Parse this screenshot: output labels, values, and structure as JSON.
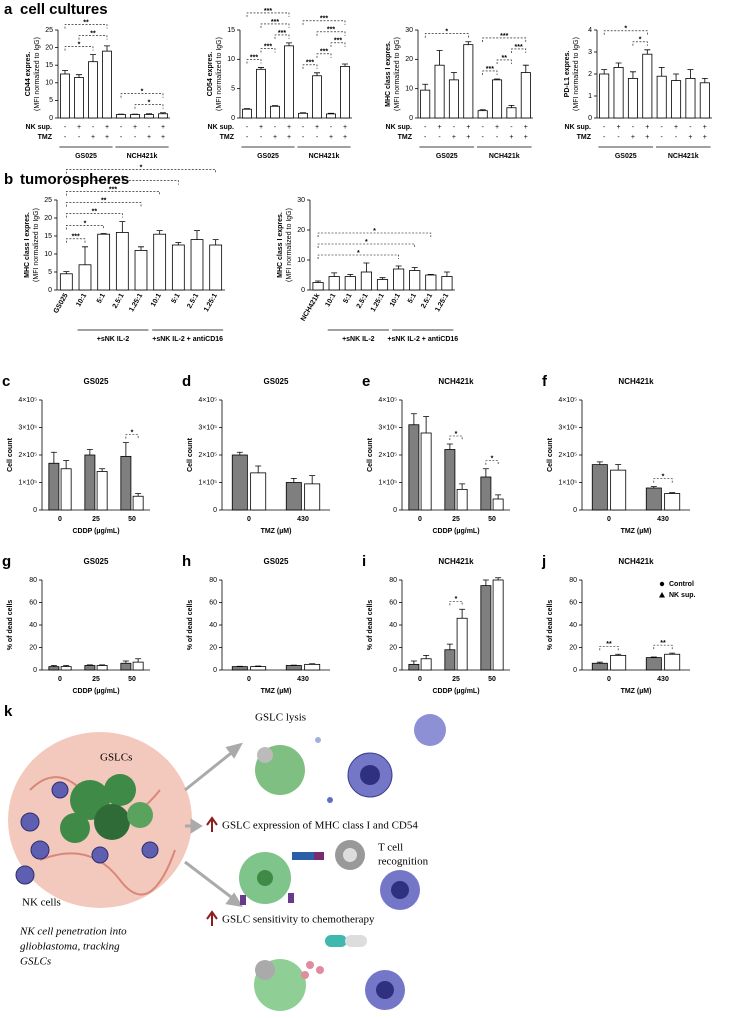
{
  "chart_data": [
    {
      "type": "bar",
      "panel": "a",
      "section": "cell cultures",
      "ylabel": [
        "CD44 expres.",
        "(MFI normalized to IgG)"
      ],
      "color": "#ffffff",
      "values": [
        12.5,
        11.5,
        16,
        19,
        1,
        1,
        1,
        1.2
      ],
      "errors": [
        1,
        0.8,
        2,
        1.5,
        0.1,
        0.1,
        0.2,
        0.3
      ],
      "ylim": [
        0,
        25
      ],
      "yticks": [
        0,
        5,
        10,
        15,
        20,
        25
      ],
      "rows": [
        {
          "name": "NK sup.",
          "values": [
            "-",
            "+",
            "-",
            "+",
            "-",
            "+",
            "-",
            "+"
          ]
        },
        {
          "name": "TMZ",
          "values": [
            "-",
            "-",
            "+",
            "+",
            "-",
            "-",
            "+",
            "+"
          ]
        }
      ],
      "group": [
        "GS025",
        "GS025",
        "GS025",
        "GS025",
        "NCH421k",
        "NCH421k",
        "NCH421k",
        "NCH421k"
      ],
      "significance": [
        {
          "text": "*",
          "pair": [
            0,
            2
          ]
        },
        {
          "text": "**",
          "pair": [
            1,
            3
          ]
        },
        {
          "text": "**",
          "pair": [
            0,
            3
          ]
        },
        {
          "text": "*",
          "pair": [
            5,
            7
          ]
        },
        {
          "text": "*",
          "pair": [
            4,
            7
          ]
        }
      ]
    },
    {
      "type": "bar",
      "ylabel": [
        "CD54 expres.",
        "(MFI normalized to IgG)"
      ],
      "color": "#ffffff",
      "values": [
        1.5,
        8.3,
        2,
        12.3,
        0.8,
        7.2,
        0.7,
        8.8
      ],
      "errors": [
        0.1,
        0.3,
        0.1,
        0.5,
        0.1,
        0.5,
        0.1,
        0.4
      ],
      "ylim": [
        0,
        15
      ],
      "yticks": [
        0,
        5,
        10,
        15
      ],
      "rows": [
        {
          "name": "NK sup.",
          "values": [
            "-",
            "+",
            "-",
            "+",
            "-",
            "+",
            "-",
            "+"
          ]
        },
        {
          "name": "TMZ",
          "values": [
            "-",
            "-",
            "+",
            "+",
            "-",
            "-",
            "+",
            "+"
          ]
        }
      ],
      "group": [
        "GS025",
        "GS025",
        "GS025",
        "GS025",
        "NCH421k",
        "NCH421k",
        "NCH421k",
        "NCH421k"
      ],
      "significance": [
        {
          "text": "***",
          "pair": [
            0,
            1
          ]
        },
        {
          "text": "***",
          "pair": [
            1,
            2
          ]
        },
        {
          "text": "***",
          "pair": [
            2,
            3
          ]
        },
        {
          "text": "***",
          "pair": [
            1,
            3
          ]
        },
        {
          "text": "***",
          "pair": [
            0,
            3
          ]
        },
        {
          "text": "***",
          "pair": [
            4,
            5
          ]
        },
        {
          "text": "***",
          "pair": [
            5,
            6
          ]
        },
        {
          "text": "***",
          "pair": [
            6,
            7
          ]
        },
        {
          "text": "***",
          "pair": [
            5,
            7
          ]
        },
        {
          "text": "***",
          "pair": [
            4,
            7
          ]
        }
      ]
    },
    {
      "type": "bar",
      "ylabel": [
        "MHC class I expres.",
        "(MFI normalized to IgG)"
      ],
      "color": "#ffffff",
      "values": [
        9.5,
        18,
        13,
        25,
        2.5,
        13,
        3.5,
        15.5
      ],
      "errors": [
        2,
        5,
        2.5,
        1,
        0.3,
        0.3,
        0.8,
        2.5
      ],
      "ylim": [
        0,
        30
      ],
      "yticks": [
        0,
        10,
        20,
        30
      ],
      "rows": [
        {
          "name": "NK sup.",
          "values": [
            "-",
            "+",
            "-",
            "+",
            "-",
            "+",
            "-",
            "+"
          ]
        },
        {
          "name": "TMZ",
          "values": [
            "-",
            "-",
            "+",
            "+",
            "-",
            "-",
            "+",
            "+"
          ]
        }
      ],
      "group": [
        "GS025",
        "GS025",
        "GS025",
        "GS025",
        "NCH421k",
        "NCH421k",
        "NCH421k",
        "NCH421k"
      ],
      "significance": [
        {
          "text": "*",
          "pair": [
            0,
            3
          ]
        },
        {
          "text": "***",
          "pair": [
            4,
            5
          ]
        },
        {
          "text": "**",
          "pair": [
            5,
            6
          ]
        },
        {
          "text": "***",
          "pair": [
            6,
            7
          ]
        },
        {
          "text": "***",
          "pair": [
            4,
            7
          ]
        }
      ]
    },
    {
      "type": "bar",
      "ylabel": [
        "PD-L1 expres.",
        "(MFI normalized to IgG)"
      ],
      "color": "#ffffff",
      "values": [
        2.0,
        2.3,
        1.8,
        2.9,
        1.9,
        1.7,
        1.8,
        1.6
      ],
      "errors": [
        0.2,
        0.2,
        0.3,
        0.2,
        0.4,
        0.3,
        0.4,
        0.2
      ],
      "ylim": [
        0,
        4
      ],
      "yticks": [
        0,
        1,
        2,
        3,
        4
      ],
      "rows": [
        {
          "name": "NK sup.",
          "values": [
            "-",
            "+",
            "-",
            "+",
            "-",
            "+",
            "-",
            "+"
          ]
        },
        {
          "name": "TMZ",
          "values": [
            "-",
            "-",
            "+",
            "+",
            "-",
            "-",
            "+",
            "+"
          ]
        }
      ],
      "group": [
        "GS025",
        "GS025",
        "GS025",
        "GS025",
        "NCH421k",
        "NCH421k",
        "NCH421k",
        "NCH421k"
      ],
      "significance": [
        {
          "text": "*",
          "pair": [
            2,
            3
          ]
        },
        {
          "text": "*",
          "pair": [
            0,
            3
          ]
        }
      ]
    },
    {
      "type": "bar",
      "panel": "b",
      "section": "tumorospheres",
      "ylabel": [
        "MHC class I expres.",
        "(MFI normalized to IgG)"
      ],
      "color": "#ffffff",
      "categories": [
        "GS025",
        "10:1",
        "5:1",
        "2.5:1",
        "1.25:1",
        "10:1",
        "5:1",
        "2.5:1",
        "1.25:1"
      ],
      "values": [
        4.5,
        7,
        15.5,
        16,
        11,
        15.5,
        12.5,
        14,
        12.5
      ],
      "errors": [
        0.6,
        5,
        0.2,
        3,
        1,
        1,
        0.7,
        2.5,
        1.5
      ],
      "ylim": [
        0,
        25
      ],
      "yticks": [
        0,
        5,
        10,
        15,
        20,
        25
      ],
      "group": [
        null,
        "+sNK IL-2",
        "+sNK IL-2",
        "+sNK IL-2",
        "+sNK IL-2",
        "+sNK IL-2 + antiCD16",
        "+sNK IL-2 + antiCD16",
        "+sNK IL-2 + antiCD16",
        "+sNK IL-2 + antiCD16"
      ],
      "significance": [
        {
          "text": "***",
          "pair": [
            0,
            1
          ]
        },
        {
          "text": "*",
          "pair": [
            0,
            2
          ]
        },
        {
          "text": "**",
          "pair": [
            0,
            3
          ]
        },
        {
          "text": "**",
          "pair": [
            0,
            4
          ]
        },
        {
          "text": "***",
          "pair": [
            0,
            5
          ]
        },
        {
          "text": "*",
          "pair": [
            0,
            6
          ]
        },
        {
          "text": "*",
          "pair": [
            0,
            8
          ]
        }
      ]
    },
    {
      "type": "bar",
      "ylabel": [
        "MHC class I expres.",
        "(MFI normalized to IgG)"
      ],
      "color": "#ffffff",
      "categories": [
        "NCH421k",
        "10:1",
        "5:1",
        "2.5:1",
        "1.25:1",
        "10:1",
        "5:1",
        "2.5:1",
        "1.25:1"
      ],
      "values": [
        2.5,
        4.5,
        4.5,
        6,
        3.5,
        7,
        6.5,
        5,
        4.5
      ],
      "errors": [
        0.5,
        1.2,
        0.7,
        3,
        0.6,
        1,
        1,
        0.2,
        1.5
      ],
      "ylim": [
        0,
        30
      ],
      "yticks": [
        0,
        10,
        20,
        30
      ],
      "group": [
        null,
        "+sNK IL-2",
        "+sNK IL-2",
        "+sNK IL-2",
        "+sNK IL-2",
        "+sNK IL-2 + antiCD16",
        "+sNK IL-2 + antiCD16",
        "+sNK IL-2 + antiCD16",
        "+sNK IL-2 + antiCD16"
      ],
      "significance": [
        {
          "text": "*",
          "pair": [
            0,
            5
          ]
        },
        {
          "text": "*",
          "pair": [
            0,
            6
          ]
        },
        {
          "text": "*",
          "pair": [
            0,
            7
          ]
        }
      ]
    },
    {
      "type": "grouped_bar",
      "panel": "c",
      "title": "GS025",
      "ylabel": "Cell count",
      "xlabel": "CDDP (µg/mL)",
      "categories": [
        "0",
        "25",
        "50"
      ],
      "series": [
        {
          "name": "Control",
          "color": "#7f7f7f",
          "values": [
            170000,
            200000,
            195000
          ],
          "errors": [
            40000,
            20000,
            50000
          ]
        },
        {
          "name": "NK sup.",
          "color": "#ffffff",
          "values": [
            150000,
            140000,
            50000
          ],
          "errors": [
            30000,
            10000,
            10000
          ]
        }
      ],
      "ylim": [
        0,
        400000
      ],
      "yticks": [
        0,
        {
          "value": 100000,
          "label": "1×10⁵"
        },
        {
          "value": 200000,
          "label": "2×10⁵"
        },
        {
          "value": 300000,
          "label": "3×10⁵"
        },
        {
          "value": 400000,
          "label": "4×10⁵"
        }
      ],
      "significance": [
        {
          "text": "*",
          "category": 2
        }
      ]
    },
    {
      "type": "grouped_bar",
      "panel": "d",
      "title": "GS025",
      "ylabel": "Cell count",
      "xlabel": "TMZ (µM)",
      "categories": [
        "0",
        "430"
      ],
      "series": [
        {
          "name": "Control",
          "color": "#7f7f7f",
          "values": [
            200000,
            100000
          ],
          "errors": [
            10000,
            15000
          ]
        },
        {
          "name": "NK sup.",
          "color": "#ffffff",
          "values": [
            135000,
            95000
          ],
          "errors": [
            25000,
            30000
          ]
        }
      ],
      "ylim": [
        0,
        400000
      ],
      "yticks": [
        0,
        {
          "value": 100000,
          "label": "1×10⁵"
        },
        {
          "value": 200000,
          "label": "2×10⁵"
        },
        {
          "value": 300000,
          "label": "3×10⁵"
        },
        {
          "value": 400000,
          "label": "4×10⁵"
        }
      ],
      "significance": []
    },
    {
      "type": "grouped_bar",
      "panel": "e",
      "title": "NCH421k",
      "ylabel": "Cell count",
      "xlabel": "CDDP (µg/mL)",
      "categories": [
        "0",
        "25",
        "50"
      ],
      "series": [
        {
          "name": "Control",
          "color": "#7f7f7f",
          "values": [
            310000,
            220000,
            120000
          ],
          "errors": [
            40000,
            20000,
            30000
          ]
        },
        {
          "name": "NK sup.",
          "color": "#ffffff",
          "values": [
            280000,
            75000,
            40000
          ],
          "errors": [
            60000,
            20000,
            15000
          ]
        }
      ],
      "ylim": [
        0,
        400000
      ],
      "yticks": [
        0,
        {
          "value": 100000,
          "label": "1×10⁵"
        },
        {
          "value": 200000,
          "label": "2×10⁵"
        },
        {
          "value": 300000,
          "label": "3×10⁵"
        },
        {
          "value": 400000,
          "label": "4×10⁵"
        }
      ],
      "significance": [
        {
          "text": "*",
          "category": 1
        },
        {
          "text": "*",
          "category": 2
        }
      ]
    },
    {
      "type": "grouped_bar",
      "panel": "f",
      "title": "NCH421k",
      "ylabel": "Cell count",
      "xlabel": "TMZ (µM)",
      "categories": [
        "0",
        "430"
      ],
      "series": [
        {
          "name": "Control",
          "color": "#7f7f7f",
          "values": [
            165000,
            80000
          ],
          "errors": [
            10000,
            5000
          ]
        },
        {
          "name": "NK sup.",
          "color": "#ffffff",
          "values": [
            145000,
            60000
          ],
          "errors": [
            20000,
            3000
          ]
        }
      ],
      "ylim": [
        0,
        400000
      ],
      "yticks": [
        0,
        {
          "value": 100000,
          "label": "1×10⁵"
        },
        {
          "value": 200000,
          "label": "2×10⁵"
        },
        {
          "value": 300000,
          "label": "3×10⁵"
        },
        {
          "value": 400000,
          "label": "4×10⁵"
        }
      ],
      "significance": [
        {
          "text": "*",
          "category": 1
        }
      ]
    },
    {
      "type": "grouped_bar",
      "panel": "g",
      "title": "GS025",
      "ylabel": "% of dead cells",
      "xlabel": "CDDP (µg/mL)",
      "categories": [
        "0",
        "25",
        "50"
      ],
      "series": [
        {
          "name": "Control",
          "color": "#7f7f7f",
          "values": [
            3,
            4,
            6
          ],
          "errors": [
            1,
            0.5,
            2
          ]
        },
        {
          "name": "NK sup.",
          "color": "#ffffff",
          "values": [
            3,
            4,
            7
          ],
          "errors": [
            1,
            0.5,
            3
          ]
        }
      ],
      "ylim": [
        0,
        80
      ],
      "yticks": [
        0,
        20,
        40,
        60,
        80
      ],
      "significance": []
    },
    {
      "type": "grouped_bar",
      "panel": "h",
      "title": "GS025",
      "ylabel": "% of dead cells",
      "xlabel": "TMZ (µM)",
      "categories": [
        "0",
        "430"
      ],
      "series": [
        {
          "name": "Control",
          "color": "#7f7f7f",
          "values": [
            3,
            4
          ],
          "errors": [
            0.3,
            0.3
          ]
        },
        {
          "name": "NK sup.",
          "color": "#ffffff",
          "values": [
            3,
            5
          ],
          "errors": [
            0.5,
            0.5
          ]
        }
      ],
      "ylim": [
        0,
        80
      ],
      "yticks": [
        0,
        20,
        40,
        60,
        80
      ],
      "significance": []
    },
    {
      "type": "grouped_bar",
      "panel": "i",
      "title": "NCH421k",
      "ylabel": "% of dead cells",
      "xlabel": "CDDP (µg/mL)",
      "categories": [
        "0",
        "25",
        "50"
      ],
      "series": [
        {
          "name": "Control",
          "color": "#7f7f7f",
          "values": [
            5,
            18,
            75
          ],
          "errors": [
            3,
            5,
            5
          ]
        },
        {
          "name": "NK sup.",
          "color": "#ffffff",
          "values": [
            10,
            46,
            80
          ],
          "errors": [
            3,
            8,
            2
          ]
        }
      ],
      "ylim": [
        0,
        80
      ],
      "yticks": [
        0,
        20,
        40,
        60,
        80
      ],
      "significance": [
        {
          "text": "*",
          "category": 1
        }
      ]
    },
    {
      "type": "grouped_bar",
      "panel": "j",
      "title": "NCH421k",
      "ylabel": "% of dead cells",
      "xlabel": "TMZ (µM)",
      "categories": [
        "0",
        "430"
      ],
      "series": [
        {
          "name": "Control",
          "color": "#7f7f7f",
          "values": [
            6,
            11
          ],
          "errors": [
            1,
            0.5
          ]
        },
        {
          "name": "NK sup.",
          "color": "#ffffff",
          "values": [
            13,
            14
          ],
          "errors": [
            1,
            1
          ]
        }
      ],
      "ylim": [
        0,
        80
      ],
      "yticks": [
        0,
        20,
        40,
        60,
        80
      ],
      "legend": "upper right",
      "significance": [
        {
          "text": "**",
          "category": 0
        },
        {
          "text": "**",
          "category": 1
        }
      ]
    }
  ],
  "diagram": {
    "panel": "k",
    "lysis": "GSLC lysis",
    "gslcs": "GSLCs",
    "nk_cells": "NK cells",
    "expression": "GSLC expression of MHC class I and CD54",
    "t_cell": [
      "T cell",
      "recognition"
    ],
    "sensitivity": "GSLC sensitivity to chemotherapy",
    "caption": [
      "NK cell penetration into",
      "glioblastoma, tracking",
      "GSLCs"
    ]
  }
}
